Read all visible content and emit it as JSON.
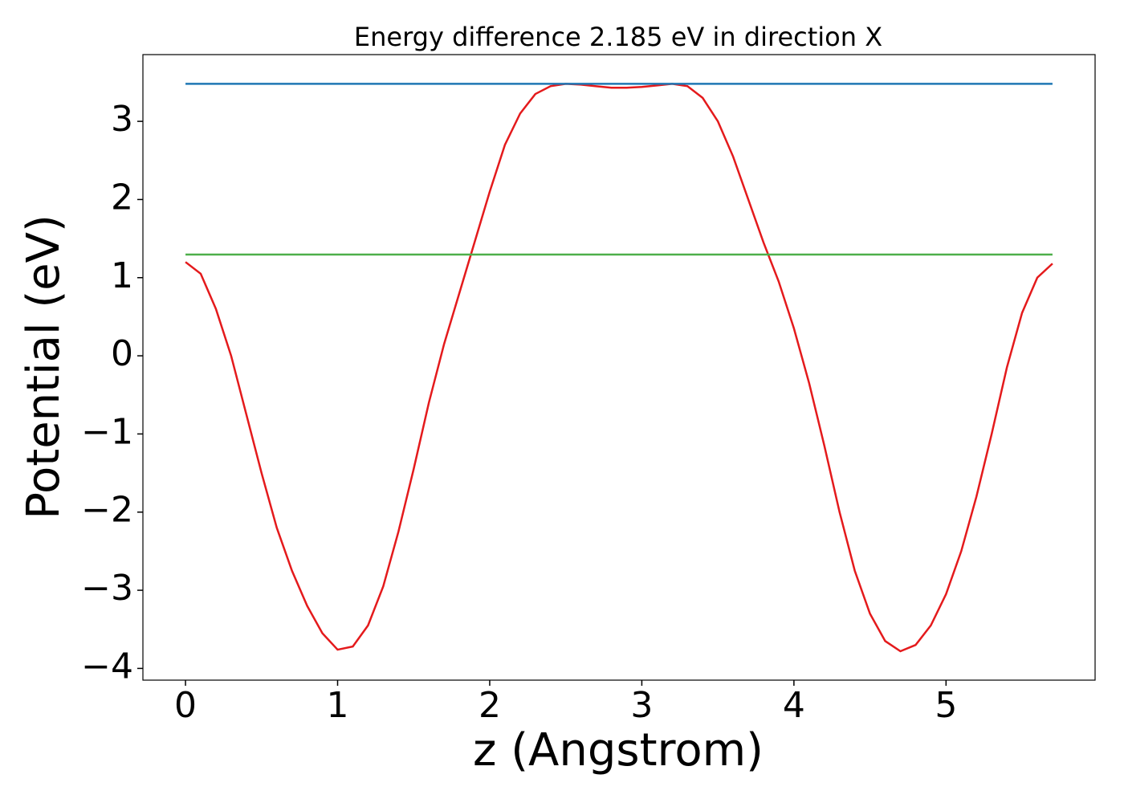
{
  "chart_data": {
    "type": "line",
    "title": "Energy difference 2.185 eV in direction X",
    "xlabel": "z (Angstrom)",
    "ylabel": "Potential (eV)",
    "xlim": [
      -0.28,
      5.98
    ],
    "ylim": [
      -4.15,
      3.854
    ],
    "xticks": [
      0,
      1,
      2,
      3,
      4,
      5
    ],
    "yticks": [
      {
        "value": -4,
        "label": "−4"
      },
      {
        "value": -3,
        "label": "−3"
      },
      {
        "value": -2,
        "label": "−2"
      },
      {
        "value": -1,
        "label": "−1"
      },
      0,
      1,
      2,
      3
    ],
    "grid": false,
    "series": [
      {
        "color": "#e41a1c",
        "x": [
          0,
          0.1,
          0.2,
          0.3,
          0.4,
          0.5,
          0.6,
          0.7,
          0.8,
          0.9,
          1.0,
          1.1,
          1.2,
          1.3,
          1.4,
          1.5,
          1.6,
          1.7,
          1.8,
          1.9,
          2.0,
          2.1,
          2.2,
          2.3,
          2.4,
          2.5,
          2.6,
          2.7,
          2.8,
          2.9,
          3.0,
          3.1,
          3.2,
          3.3,
          3.4,
          3.5,
          3.6,
          3.7,
          3.8,
          3.9,
          4.0,
          4.1,
          4.2,
          4.3,
          4.4,
          4.5,
          4.6,
          4.7,
          4.8,
          4.9,
          5.0,
          5.1,
          5.2,
          5.3,
          5.4,
          5.5,
          5.6,
          5.7
        ],
        "values": [
          1.2,
          1.05,
          0.6,
          0.0,
          -0.75,
          -1.5,
          -2.2,
          -2.75,
          -3.2,
          -3.55,
          -3.76,
          -3.72,
          -3.45,
          -2.95,
          -2.25,
          -1.45,
          -0.6,
          0.15,
          0.8,
          1.45,
          2.1,
          2.7,
          3.1,
          3.35,
          3.45,
          3.48,
          3.47,
          3.45,
          3.43,
          3.43,
          3.44,
          3.46,
          3.48,
          3.45,
          3.3,
          3.0,
          2.55,
          2.0,
          1.45,
          0.95,
          0.35,
          -0.35,
          -1.15,
          -2.0,
          -2.75,
          -3.3,
          -3.65,
          -3.78,
          -3.7,
          -3.45,
          -3.05,
          -2.5,
          -1.8,
          -1.0,
          -0.15,
          0.55,
          1.0,
          1.18
        ]
      },
      {
        "color": "#1f77b4",
        "x": [
          0,
          5.7
        ],
        "values": [
          3.48,
          3.48
        ]
      },
      {
        "color": "#4daf4a",
        "x": [
          0,
          5.7
        ],
        "values": [
          1.295,
          1.295
        ]
      }
    ]
  }
}
